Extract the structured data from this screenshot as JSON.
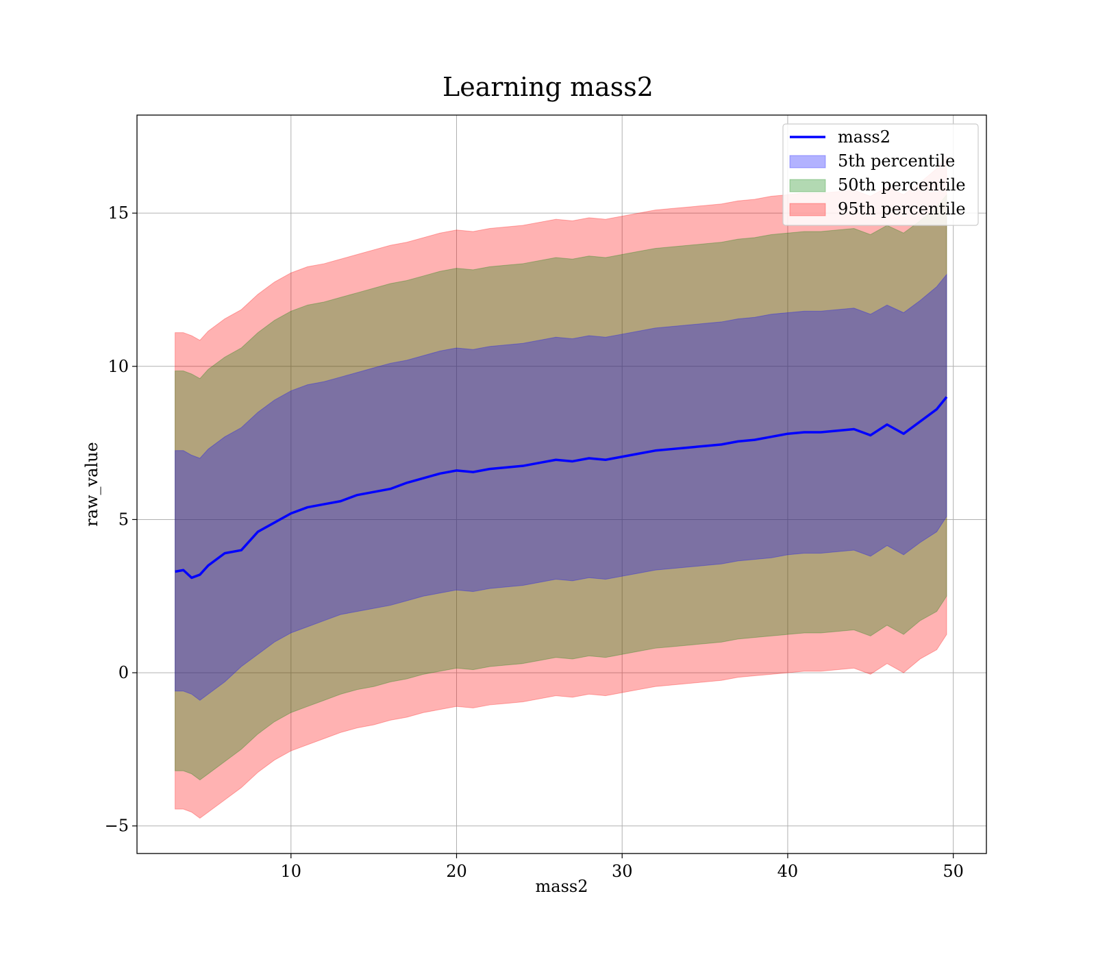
{
  "chart_data": {
    "type": "area",
    "title": "Learning mass2",
    "xlabel": "mass2",
    "ylabel": "raw_value",
    "xlim": [
      0.7,
      52
    ],
    "ylim": [
      -5.9,
      18.2
    ],
    "xticks": [
      10,
      20,
      30,
      40,
      50
    ],
    "xtick_labels": [
      "10",
      "20",
      "30",
      "40",
      "50"
    ],
    "yticks": [
      -5,
      0,
      5,
      10,
      15
    ],
    "ytick_labels": [
      "−5",
      "0",
      "5",
      "10",
      "15"
    ],
    "grid": true,
    "legend_position": "top-right",
    "colors": {
      "line": "#0000ff",
      "band_5": "#0000ff",
      "band_50": "#008000",
      "band_95": "#ff0000",
      "grid": "#b0b0b0"
    },
    "x": [
      3,
      3.5,
      4,
      4.5,
      5,
      6,
      7,
      8,
      9,
      10,
      11,
      12,
      13,
      14,
      15,
      16,
      17,
      18,
      19,
      20,
      21,
      22,
      23,
      24,
      25,
      26,
      27,
      28,
      29,
      30,
      31,
      32,
      33,
      34,
      35,
      36,
      37,
      38,
      39,
      40,
      41,
      42,
      43,
      44,
      45,
      46,
      47,
      48,
      49,
      49.6
    ],
    "series": [
      {
        "name": "mass2",
        "kind": "line",
        "values": [
          3.3,
          3.35,
          3.1,
          3.2,
          3.5,
          3.9,
          4.0,
          4.6,
          4.9,
          5.2,
          5.4,
          5.5,
          5.6,
          5.8,
          5.9,
          6.0,
          6.2,
          6.35,
          6.5,
          6.6,
          6.55,
          6.65,
          6.7,
          6.75,
          6.85,
          6.95,
          6.9,
          7.0,
          6.95,
          7.05,
          7.15,
          7.25,
          7.3,
          7.35,
          7.4,
          7.45,
          7.55,
          7.6,
          7.7,
          7.8,
          7.85,
          7.85,
          7.9,
          7.95,
          7.75,
          8.1,
          7.8,
          8.2,
          8.6,
          9.0
        ]
      },
      {
        "name": "5th percentile",
        "kind": "band",
        "lower": [
          -0.6,
          -0.6,
          -0.7,
          -0.9,
          -0.7,
          -0.3,
          0.2,
          0.6,
          1.0,
          1.3,
          1.5,
          1.7,
          1.9,
          2.0,
          2.1,
          2.2,
          2.35,
          2.5,
          2.6,
          2.7,
          2.65,
          2.75,
          2.8,
          2.85,
          2.95,
          3.05,
          3.0,
          3.1,
          3.05,
          3.15,
          3.25,
          3.35,
          3.4,
          3.45,
          3.5,
          3.55,
          3.65,
          3.7,
          3.75,
          3.85,
          3.9,
          3.9,
          3.95,
          4.0,
          3.8,
          4.15,
          3.85,
          4.25,
          4.6,
          5.1
        ],
        "upper": [
          7.25,
          7.25,
          7.1,
          7.0,
          7.3,
          7.7,
          8.0,
          8.5,
          8.9,
          9.2,
          9.4,
          9.5,
          9.65,
          9.8,
          9.95,
          10.1,
          10.2,
          10.35,
          10.5,
          10.6,
          10.55,
          10.65,
          10.7,
          10.75,
          10.85,
          10.95,
          10.9,
          11.0,
          10.95,
          11.05,
          11.15,
          11.25,
          11.3,
          11.35,
          11.4,
          11.45,
          11.55,
          11.6,
          11.7,
          11.75,
          11.8,
          11.8,
          11.85,
          11.9,
          11.7,
          12.0,
          11.75,
          12.15,
          12.6,
          13.0
        ]
      },
      {
        "name": "50th percentile",
        "kind": "band",
        "lower": [
          -3.2,
          -3.2,
          -3.3,
          -3.5,
          -3.3,
          -2.9,
          -2.5,
          -2.0,
          -1.6,
          -1.3,
          -1.1,
          -0.9,
          -0.7,
          -0.55,
          -0.45,
          -0.3,
          -0.2,
          -0.05,
          0.05,
          0.15,
          0.1,
          0.2,
          0.25,
          0.3,
          0.4,
          0.5,
          0.45,
          0.55,
          0.5,
          0.6,
          0.7,
          0.8,
          0.85,
          0.9,
          0.95,
          1.0,
          1.1,
          1.15,
          1.2,
          1.25,
          1.3,
          1.3,
          1.35,
          1.4,
          1.2,
          1.55,
          1.25,
          1.7,
          2.0,
          2.5
        ],
        "upper": [
          9.85,
          9.85,
          9.75,
          9.6,
          9.9,
          10.3,
          10.6,
          11.1,
          11.5,
          11.8,
          12.0,
          12.1,
          12.25,
          12.4,
          12.55,
          12.7,
          12.8,
          12.95,
          13.1,
          13.2,
          13.15,
          13.25,
          13.3,
          13.35,
          13.45,
          13.55,
          13.5,
          13.6,
          13.55,
          13.65,
          13.75,
          13.85,
          13.9,
          13.95,
          14.0,
          14.05,
          14.15,
          14.2,
          14.3,
          14.35,
          14.4,
          14.4,
          14.45,
          14.5,
          14.3,
          14.6,
          14.35,
          14.75,
          15.2,
          15.6
        ]
      },
      {
        "name": "95th percentile",
        "kind": "band",
        "lower": [
          -4.45,
          -4.45,
          -4.55,
          -4.75,
          -4.55,
          -4.15,
          -3.75,
          -3.25,
          -2.85,
          -2.55,
          -2.35,
          -2.15,
          -1.95,
          -1.8,
          -1.7,
          -1.55,
          -1.45,
          -1.3,
          -1.2,
          -1.1,
          -1.15,
          -1.05,
          -1.0,
          -0.95,
          -0.85,
          -0.75,
          -0.8,
          -0.7,
          -0.75,
          -0.65,
          -0.55,
          -0.45,
          -0.4,
          -0.35,
          -0.3,
          -0.25,
          -0.15,
          -0.1,
          -0.05,
          0.0,
          0.05,
          0.05,
          0.1,
          0.15,
          -0.05,
          0.3,
          0.0,
          0.45,
          0.75,
          1.25
        ],
        "upper": [
          11.1,
          11.1,
          11.0,
          10.85,
          11.15,
          11.55,
          11.85,
          12.35,
          12.75,
          13.05,
          13.25,
          13.35,
          13.5,
          13.65,
          13.8,
          13.95,
          14.05,
          14.2,
          14.35,
          14.45,
          14.4,
          14.5,
          14.55,
          14.6,
          14.7,
          14.8,
          14.75,
          14.85,
          14.8,
          14.9,
          15.0,
          15.1,
          15.15,
          15.2,
          15.25,
          15.3,
          15.4,
          15.45,
          15.55,
          15.6,
          15.65,
          15.65,
          15.7,
          15.75,
          15.55,
          15.85,
          15.6,
          16.0,
          16.45,
          16.85
        ]
      }
    ]
  }
}
